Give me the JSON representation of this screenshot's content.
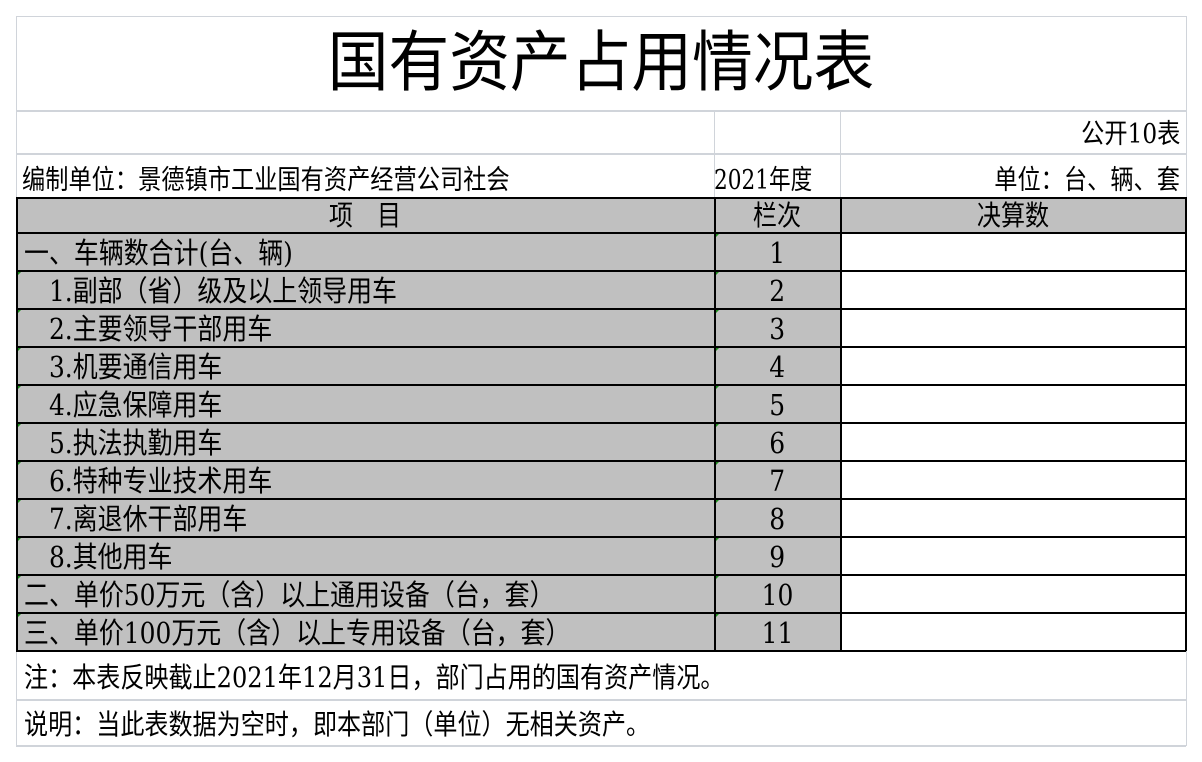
{
  "title": "国有资产占用情况表",
  "table_code": "公开10表",
  "compiler": "编制单位：景德镇市工业国有资产经营公司社会",
  "year": "2021年度",
  "unit": "单位：台、辆、套",
  "headers": {
    "item": "项　目",
    "column_no": "栏次",
    "final_amount": "决算数"
  },
  "rows": [
    {
      "item": "一、车辆数合计(台、辆)",
      "no": "1",
      "value": ""
    },
    {
      "item": "　1.副部（省）级及以上领导用车",
      "no": "2",
      "value": ""
    },
    {
      "item": "　2.主要领导干部用车",
      "no": "3",
      "value": ""
    },
    {
      "item": "　3.机要通信用车",
      "no": "4",
      "value": ""
    },
    {
      "item": "　4.应急保障用车",
      "no": "5",
      "value": ""
    },
    {
      "item": "　5.执法执勤用车",
      "no": "6",
      "value": ""
    },
    {
      "item": "　6.特种专业技术用车",
      "no": "7",
      "value": ""
    },
    {
      "item": "　7.离退休干部用车",
      "no": "8",
      "value": ""
    },
    {
      "item": "　8.其他用车",
      "no": "9",
      "value": ""
    },
    {
      "item": "二、单价50万元（含）以上通用设备（台，套）",
      "no": "10",
      "value": ""
    },
    {
      "item": "三、单价100万元（含）以上专用设备（台，套）",
      "no": "11",
      "value": ""
    }
  ],
  "note": "注：本表反映截止2021年12月31日，部门占用的国有资产情况。",
  "explanation": "说明：当此表数据为空时，即本部门（单位）无相关资产。",
  "colors": {
    "header_fill": "#c0c0c0",
    "gridline": "#d0d4da",
    "comment_marker": "#1a8a1a"
  }
}
